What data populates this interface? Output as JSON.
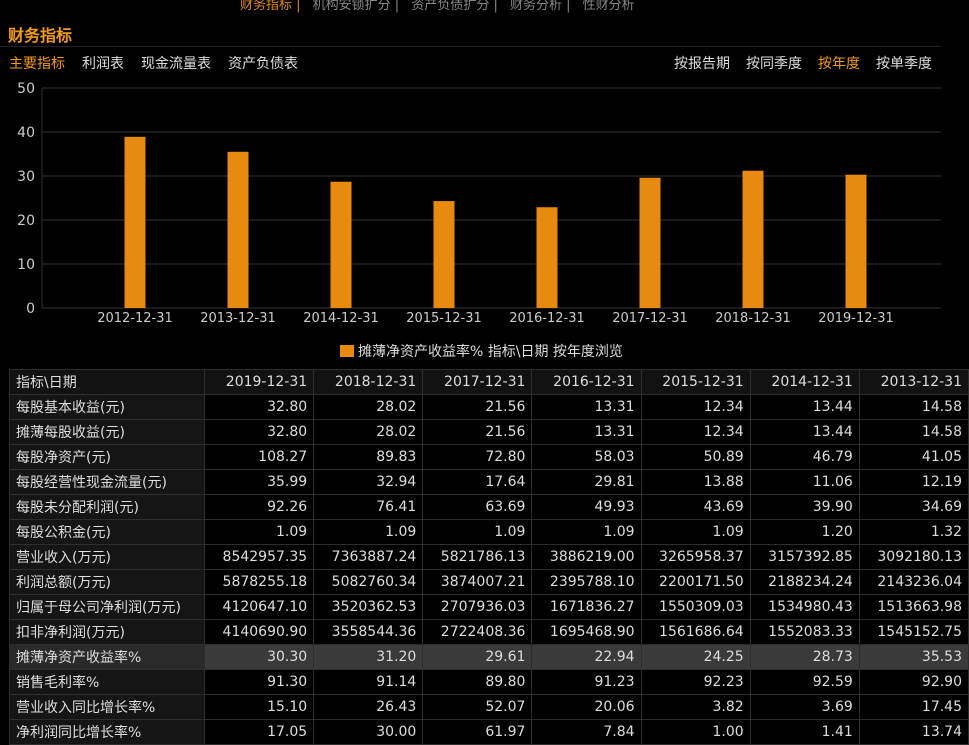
{
  "top_nav": [
    "财务指标",
    "机构安锁扩分",
    "资产负债扩分",
    "财务分析",
    "性财分析"
  ],
  "section_title": "财务指标",
  "tabs": [
    "主要指标",
    "利润表",
    "现金流量表",
    "资产负债表"
  ],
  "period_tabs": [
    "按报告期",
    "按同季度",
    "按年度",
    "按单季度"
  ],
  "active_tab": 0,
  "active_period": 2,
  "legend_label": "摊薄净资产收益率% 指标\\日期 按年度浏览",
  "chart_data": {
    "type": "bar",
    "categories": [
      "2012-12-31",
      "2013-12-31",
      "2014-12-31",
      "2015-12-31",
      "2016-12-31",
      "2017-12-31",
      "2018-12-31",
      "2019-12-31"
    ],
    "series": [
      {
        "name": "摊薄净资产收益率%",
        "values": [
          38.9,
          35.5,
          28.7,
          24.3,
          22.9,
          29.6,
          31.2,
          30.3
        ]
      }
    ],
    "yticks": [
      0,
      10,
      20,
      30,
      40,
      50
    ],
    "ylim": [
      0,
      50
    ],
    "grid": true,
    "color": "#e88a10"
  },
  "table": {
    "header": [
      "指标\\日期",
      "2019-12-31",
      "2018-12-31",
      "2017-12-31",
      "2016-12-31",
      "2015-12-31",
      "2014-12-31",
      "2013-12-31"
    ],
    "rows": [
      {
        "label": "每股基本收益(元)",
        "values": [
          "32.80",
          "28.02",
          "21.56",
          "13.31",
          "12.34",
          "13.44",
          "14.58"
        ]
      },
      {
        "label": "摊薄每股收益(元)",
        "values": [
          "32.80",
          "28.02",
          "21.56",
          "13.31",
          "12.34",
          "13.44",
          "14.58"
        ]
      },
      {
        "label": "每股净资产(元)",
        "values": [
          "108.27",
          "89.83",
          "72.80",
          "58.03",
          "50.89",
          "46.79",
          "41.05"
        ]
      },
      {
        "label": "每股经营性现金流量(元)",
        "values": [
          "35.99",
          "32.94",
          "17.64",
          "29.81",
          "13.88",
          "11.06",
          "12.19"
        ]
      },
      {
        "label": "每股未分配利润(元)",
        "values": [
          "92.26",
          "76.41",
          "63.69",
          "49.93",
          "43.69",
          "39.90",
          "34.69"
        ]
      },
      {
        "label": "每股公积金(元)",
        "values": [
          "1.09",
          "1.09",
          "1.09",
          "1.09",
          "1.09",
          "1.20",
          "1.32"
        ]
      },
      {
        "label": "营业收入(万元)",
        "values": [
          "8542957.35",
          "7363887.24",
          "5821786.13",
          "3886219.00",
          "3265958.37",
          "3157392.85",
          "3092180.13"
        ]
      },
      {
        "label": "利润总额(万元)",
        "values": [
          "5878255.18",
          "5082760.34",
          "3874007.21",
          "2395788.10",
          "2200171.50",
          "2188234.24",
          "2143236.04"
        ]
      },
      {
        "label": "归属于母公司净利润(万元)",
        "values": [
          "4120647.10",
          "3520362.53",
          "2707936.03",
          "1671836.27",
          "1550309.03",
          "1534980.43",
          "1513663.98"
        ]
      },
      {
        "label": "扣非净利润(万元)",
        "values": [
          "4140690.90",
          "3558544.36",
          "2722408.36",
          "1695468.90",
          "1561686.64",
          "1552083.33",
          "1545152.75"
        ]
      },
      {
        "label": "摊薄净资产收益率%",
        "values": [
          "30.30",
          "31.20",
          "29.61",
          "22.94",
          "24.25",
          "28.73",
          "35.53"
        ],
        "highlight": true
      },
      {
        "label": "销售毛利率%",
        "values": [
          "91.30",
          "91.14",
          "89.80",
          "91.23",
          "92.23",
          "92.59",
          "92.90"
        ]
      },
      {
        "label": "营业收入同比增长率%",
        "values": [
          "15.10",
          "26.43",
          "52.07",
          "20.06",
          "3.82",
          "3.69",
          "17.45"
        ]
      },
      {
        "label": "净利润同比增长率%",
        "values": [
          "17.05",
          "30.00",
          "61.97",
          "7.84",
          "1.00",
          "1.41",
          "13.74"
        ]
      }
    ]
  }
}
